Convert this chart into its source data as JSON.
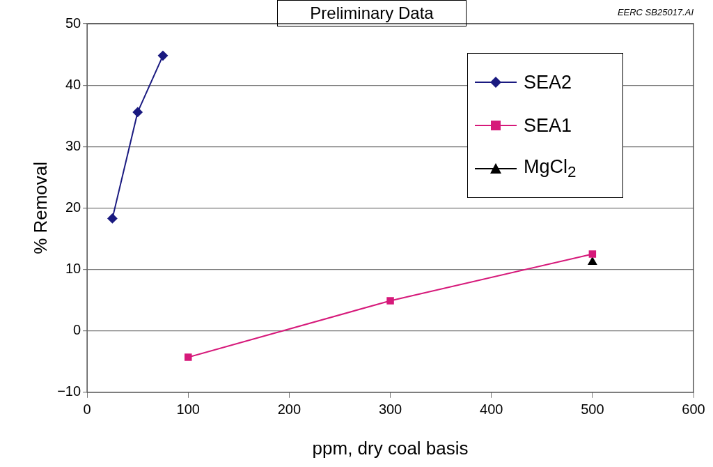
{
  "chart_data": {
    "type": "line",
    "title": "Preliminary Data",
    "xlabel": "ppm, dry coal basis",
    "ylabel": "% Removal",
    "annotations": [
      "EERC SB25017.AI"
    ],
    "xlim": [
      0,
      600
    ],
    "xticks": [
      0,
      100,
      200,
      300,
      400,
      500,
      600
    ],
    "ylim": [
      -10,
      50
    ],
    "yticks": [
      {
        "value": -10,
        "label": "−10"
      },
      0,
      10,
      20,
      30,
      40,
      50
    ],
    "grid": "y",
    "legend": "top right",
    "line_style": "solid",
    "series": [
      {
        "name": "SEA2",
        "color": "#1a1a80",
        "marker": "diamond",
        "x": [
          25,
          50,
          75
        ],
        "values": [
          18.3,
          35.6,
          44.8
        ]
      },
      {
        "name": "SEA1",
        "color": "#d6197a",
        "marker": "square",
        "x": [
          100,
          300,
          500
        ],
        "values": [
          -4.3,
          4.9,
          12.5
        ]
      },
      {
        "name": "MgCl$_{2}$",
        "color": "#000000",
        "marker": "triangle",
        "x": [
          500
        ],
        "values": [
          11.2
        ]
      }
    ]
  }
}
